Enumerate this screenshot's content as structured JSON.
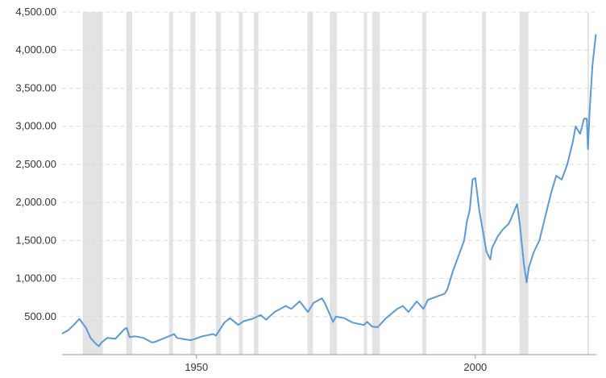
{
  "chart_data": {
    "type": "line",
    "title": "",
    "xlabel": "",
    "ylabel": "",
    "xlim": [
      1925.9,
      2021.7
    ],
    "ylim": [
      0,
      4500
    ],
    "grid": "horizontal-dashed",
    "y_ticks": [
      {
        "value": 500,
        "label": "500.00"
      },
      {
        "value": 1000,
        "label": "1,000.00"
      },
      {
        "value": 1500,
        "label": "1,500.00"
      },
      {
        "value": 2000,
        "label": "2,000.00"
      },
      {
        "value": 2500,
        "label": "2,500.00"
      },
      {
        "value": 3000,
        "label": "3,000.00"
      },
      {
        "value": 3500,
        "label": "3,500.00"
      },
      {
        "value": 4000,
        "label": "4,000.00"
      },
      {
        "value": 4500,
        "label": "4,500.00"
      }
    ],
    "x_ticks": [
      {
        "value": 1950,
        "label": "1950"
      },
      {
        "value": 2000,
        "label": "2000"
      }
    ],
    "recessions": [
      [
        1929.6,
        1933.2
      ],
      [
        1937.4,
        1938.5
      ],
      [
        1945.1,
        1945.8
      ],
      [
        1948.9,
        1949.8
      ],
      [
        1953.5,
        1954.4
      ],
      [
        1957.6,
        1958.3
      ],
      [
        1960.3,
        1961.1
      ],
      [
        1969.9,
        1970.9
      ],
      [
        1973.9,
        1975.2
      ],
      [
        1980.0,
        1980.6
      ],
      [
        1981.5,
        1982.9
      ],
      [
        1990.5,
        1991.2
      ],
      [
        2001.2,
        2001.9
      ],
      [
        2007.9,
        2009.5
      ],
      [
        2020.1,
        2020.4
      ]
    ],
    "series": [
      {
        "color": "#5b9bd5",
        "x": [
          1926.0,
          1927.0,
          1928.0,
          1929.0,
          1929.7,
          1930.2,
          1931.0,
          1932.0,
          1932.5,
          1933.0,
          1934.0,
          1935.5,
          1937.0,
          1937.5,
          1938.0,
          1939.0,
          1940.5,
          1942.0,
          1942.5,
          1944.0,
          1946.0,
          1946.5,
          1948.0,
          1949.0,
          1949.5,
          1951.0,
          1953.0,
          1953.5,
          1955.0,
          1956.0,
          1957.5,
          1958.5,
          1960.0,
          1961.5,
          1962.5,
          1964.0,
          1966.0,
          1967.0,
          1968.5,
          1970.0,
          1971.0,
          1972.5,
          1973.0,
          1974.5,
          1975.0,
          1976.5,
          1978.0,
          1980.0,
          1980.6,
          1981.5,
          1982.5,
          1984.0,
          1986.0,
          1987.0,
          1988.0,
          1989.5,
          1990.7,
          1991.5,
          1993.0,
          1994.5,
          1995.0,
          1996.0,
          1997.0,
          1998.0,
          1998.5,
          1999.0,
          1999.5,
          2000.0,
          2000.7,
          2001.3,
          2002.0,
          2002.7,
          2003.0,
          2004.0,
          2005.0,
          2006.0,
          2006.5,
          2007.5,
          2008.0,
          2008.7,
          2009.2,
          2009.6,
          2010.5,
          2011.5,
          2012.5,
          2013.5,
          2014.5,
          2015.5,
          2016.5,
          2017.5,
          2018.0,
          2018.8,
          2019.5,
          2020.0,
          2020.2,
          2020.5,
          2021.0,
          2021.6
        ],
        "y": [
          280,
          320,
          390,
          470,
          400,
          350,
          220,
          140,
          110,
          160,
          220,
          210,
          330,
          350,
          230,
          240,
          220,
          160,
          165,
          210,
          270,
          220,
          200,
          190,
          200,
          240,
          270,
          250,
          420,
          480,
          390,
          440,
          470,
          520,
          460,
          560,
          640,
          600,
          700,
          560,
          680,
          740,
          680,
          430,
          500,
          480,
          420,
          390,
          430,
          370,
          360,
          480,
          600,
          640,
          560,
          700,
          600,
          720,
          760,
          800,
          860,
          1100,
          1300,
          1500,
          1750,
          1900,
          2300,
          2320,
          1900,
          1650,
          1350,
          1250,
          1400,
          1550,
          1650,
          1720,
          1800,
          1980,
          1700,
          1200,
          950,
          1150,
          1350,
          1500,
          1800,
          2100,
          2350,
          2300,
          2500,
          2800,
          3000,
          2900,
          3100,
          3100,
          2700,
          3200,
          3800,
          4200
        ]
      }
    ]
  }
}
